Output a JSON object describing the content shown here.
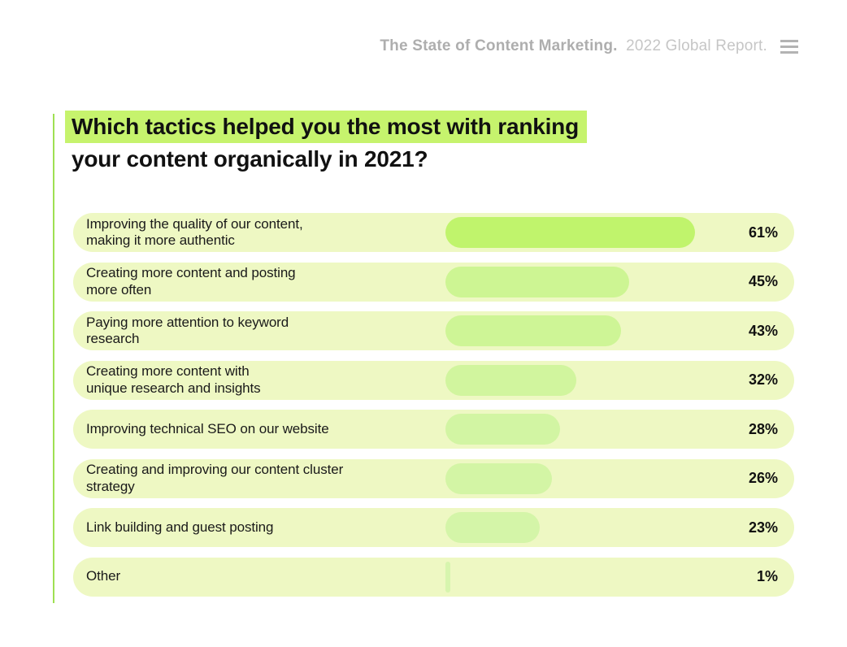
{
  "header": {
    "brand_bold": "The State of Content Marketing.",
    "brand_light": "2022 Global Report.",
    "menu_icon": "hamburger-icon"
  },
  "title": {
    "line1": "Which tactics helped you the most with ranking",
    "line2": "your content organically in 2021?"
  },
  "chart_data": {
    "type": "bar",
    "orientation": "horizontal",
    "title": "Which tactics helped you the most with ranking your content organically in 2021?",
    "categories": [
      "Improving the quality of our content,\nmaking it more authentic",
      "Creating more content and posting\nmore often",
      "Paying more attention to keyword\nresearch",
      "Creating more content with\nunique research and insights",
      "Improving technical SEO on our website",
      "Creating and improving our content cluster\nstrategy",
      "Link building and guest posting",
      "Other"
    ],
    "values": [
      61,
      45,
      43,
      32,
      28,
      26,
      23,
      1
    ],
    "value_labels": [
      "61%",
      "45%",
      "43%",
      "32%",
      "28%",
      "26%",
      "23%",
      "1%"
    ],
    "bar_colors": [
      "#c0f46c",
      "#cdf593",
      "#cef596",
      "#d1f59e",
      "#d2f5a3",
      "#d3f5a5",
      "#d4f5a8",
      "#d7f5ae"
    ],
    "xlim": [
      0,
      65
    ],
    "grid": false,
    "legend": false,
    "value_label_position": "right"
  },
  "colors": {
    "row_background": "#eef8c3",
    "title_highlight": "#c6f36d",
    "accent_line": "#9fe052",
    "header_text_bold": "#aeaeae",
    "header_text_light": "#c6c6c6",
    "text": "#111111"
  }
}
